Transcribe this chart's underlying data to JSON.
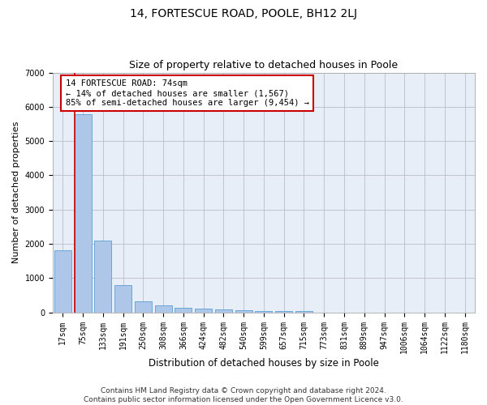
{
  "title": "14, FORTESCUE ROAD, POOLE, BH12 2LJ",
  "subtitle": "Size of property relative to detached houses in Poole",
  "xlabel": "Distribution of detached houses by size in Poole",
  "ylabel": "Number of detached properties",
  "footer_line1": "Contains HM Land Registry data © Crown copyright and database right 2024.",
  "footer_line2": "Contains public sector information licensed under the Open Government Licence v3.0.",
  "categories": [
    "17sqm",
    "75sqm",
    "133sqm",
    "191sqm",
    "250sqm",
    "308sqm",
    "366sqm",
    "424sqm",
    "482sqm",
    "540sqm",
    "599sqm",
    "657sqm",
    "715sqm",
    "773sqm",
    "831sqm",
    "889sqm",
    "947sqm",
    "1006sqm",
    "1064sqm",
    "1122sqm",
    "1180sqm"
  ],
  "values": [
    1800,
    5780,
    2090,
    800,
    330,
    200,
    125,
    110,
    85,
    55,
    40,
    35,
    28,
    0,
    0,
    0,
    0,
    0,
    0,
    0,
    0
  ],
  "bar_color": "#aec6e8",
  "bar_edge_color": "#5a9fd4",
  "annotation_line1": "14 FORTESCUE ROAD: 74sqm",
  "annotation_line2": "← 14% of detached houses are smaller (1,567)",
  "annotation_line3": "85% of semi-detached houses are larger (9,454) →",
  "annotation_box_color": "#ffffff",
  "annotation_box_edge": "#cc0000",
  "vline_color": "#cc0000",
  "vline_x_index": 1,
  "ylim": [
    0,
    7000
  ],
  "yticks": [
    0,
    1000,
    2000,
    3000,
    4000,
    5000,
    6000,
    7000
  ],
  "grid_color": "#bbbbcc",
  "bg_color": "#e8eef8",
  "title_fontsize": 10,
  "subtitle_fontsize": 9,
  "tick_fontsize": 7,
  "ylabel_fontsize": 8,
  "xlabel_fontsize": 8.5,
  "footer_fontsize": 6.5,
  "ann_fontsize": 7.5
}
